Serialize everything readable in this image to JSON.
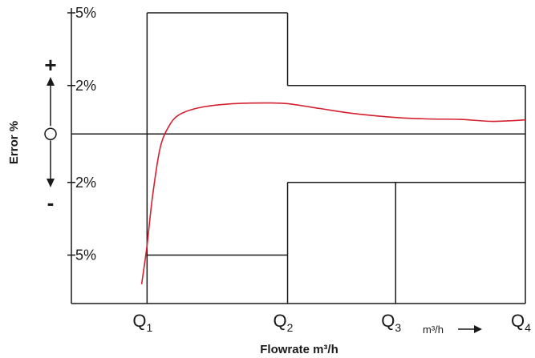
{
  "chart_data": {
    "type": "line",
    "title": "",
    "xlabel": "Flowrate m³/h",
    "ylabel": "Error %",
    "x_ticks": [
      {
        "base": "Q",
        "sub": "1"
      },
      {
        "base": "Q",
        "sub": "2"
      },
      {
        "base": "Q",
        "sub": "3"
      },
      {
        "base": "Q",
        "sub": "4"
      }
    ],
    "x_unit_label": "m³/h",
    "y_ticks": [
      {
        "value": 5,
        "label": "5%"
      },
      {
        "value": 2,
        "label": "2%"
      },
      {
        "value": -2,
        "label": "2%"
      },
      {
        "value": -5,
        "label": "5%"
      }
    ],
    "sign_plus": "+",
    "sign_minus": "-",
    "ylim": [
      -7,
      5
    ],
    "xlim": [
      0,
      4.2
    ],
    "limits_upper": [
      {
        "from": 0.7,
        "to": 2.0,
        "value": 5
      },
      {
        "from": 2.0,
        "to": 4.2,
        "value": 2
      }
    ],
    "limits_lower": [
      {
        "from": 0.7,
        "to": 2.0,
        "value": -5
      },
      {
        "from": 2.0,
        "to": 4.2,
        "value": -2
      }
    ],
    "error_curve": [
      {
        "x": 0.65,
        "y": -6.2
      },
      {
        "x": 0.7,
        "y": -4.6
      },
      {
        "x": 0.75,
        "y": -2.6
      },
      {
        "x": 0.82,
        "y": -0.6
      },
      {
        "x": 0.9,
        "y": 0.3
      },
      {
        "x": 1.0,
        "y": 0.8
      },
      {
        "x": 1.2,
        "y": 1.1
      },
      {
        "x": 1.5,
        "y": 1.25
      },
      {
        "x": 1.8,
        "y": 1.28
      },
      {
        "x": 2.0,
        "y": 1.25
      },
      {
        "x": 2.3,
        "y": 1.05
      },
      {
        "x": 2.6,
        "y": 0.85
      },
      {
        "x": 3.0,
        "y": 0.68
      },
      {
        "x": 3.3,
        "y": 0.62
      },
      {
        "x": 3.6,
        "y": 0.6
      },
      {
        "x": 3.9,
        "y": 0.52
      },
      {
        "x": 4.2,
        "y": 0.58
      }
    ],
    "curve_color": "#d42030",
    "axis_color": "#1a1a1a"
  }
}
